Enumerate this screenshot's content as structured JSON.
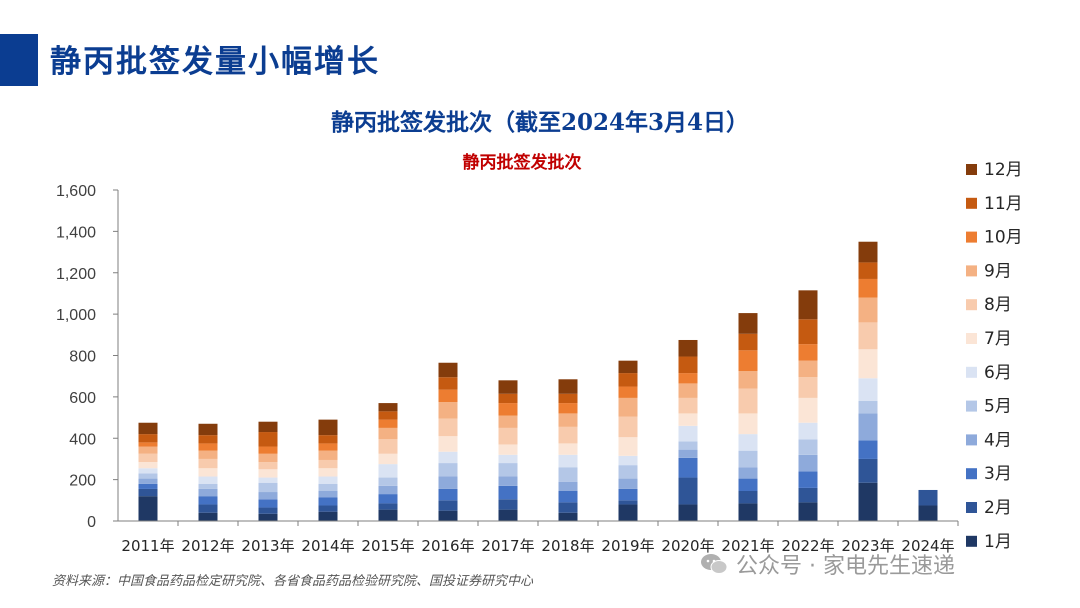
{
  "page": {
    "title": "静丙批签发量小幅增长",
    "chart_heading": "静丙批签发批次（截至2024年3月4日）",
    "source": "资料来源：中国食品药品检定研究院、各省食品药品检验研究院、国投证券研究中心",
    "watermark": "公众号 · 家电先生速递"
  },
  "chart_data": {
    "type": "bar",
    "stacked": true,
    "title": "静丙批签发批次",
    "title_color": "#c00000",
    "xlabel": "",
    "ylabel": "",
    "ylim": [
      0,
      1600
    ],
    "yticks": [
      0,
      200,
      400,
      600,
      800,
      1000,
      1200,
      1400,
      1600
    ],
    "ytick_labels": [
      "0",
      "200",
      "400",
      "600",
      "800",
      "1,000",
      "1,200",
      "1,400",
      "1,600"
    ],
    "grid": false,
    "legend_position": "right",
    "categories": [
      "2011年",
      "2012年",
      "2013年",
      "2014年",
      "2015年",
      "2016年",
      "2017年",
      "2018年",
      "2019年",
      "2020年",
      "2021年",
      "2022年",
      "2023年",
      "2024年"
    ],
    "series": [
      {
        "name": "1月",
        "color": "#1f3864",
        "values": [
          120,
          40,
          35,
          45,
          55,
          50,
          55,
          40,
          80,
          80,
          85,
          90,
          185,
          75
        ]
      },
      {
        "name": "2月",
        "color": "#2f5597",
        "values": [
          35,
          40,
          30,
          30,
          30,
          50,
          50,
          50,
          20,
          130,
          60,
          70,
          115,
          75
        ]
      },
      {
        "name": "3月",
        "color": "#4472c4",
        "values": [
          25,
          40,
          40,
          40,
          45,
          55,
          65,
          55,
          55,
          95,
          60,
          80,
          90,
          0
        ]
      },
      {
        "name": "4月",
        "color": "#8eaadb",
        "values": [
          25,
          35,
          35,
          30,
          40,
          60,
          45,
          45,
          50,
          40,
          55,
          80,
          130,
          0
        ]
      },
      {
        "name": "5月",
        "color": "#b4c7e7",
        "values": [
          25,
          25,
          45,
          35,
          40,
          65,
          65,
          70,
          65,
          40,
          80,
          75,
          60,
          0
        ]
      },
      {
        "name": "6月",
        "color": "#dae3f3",
        "values": [
          25,
          35,
          25,
          35,
          65,
          55,
          40,
          60,
          45,
          75,
          80,
          80,
          110,
          0
        ]
      },
      {
        "name": "7月",
        "color": "#fbe5d6",
        "values": [
          30,
          40,
          40,
          40,
          50,
          75,
          50,
          55,
          90,
          60,
          100,
          120,
          140,
          0
        ]
      },
      {
        "name": "8月",
        "color": "#f8cbad",
        "values": [
          40,
          45,
          35,
          40,
          70,
          85,
          80,
          80,
          100,
          75,
          120,
          100,
          130,
          0
        ]
      },
      {
        "name": "9月",
        "color": "#f4b183",
        "values": [
          35,
          40,
          40,
          45,
          55,
          80,
          60,
          65,
          90,
          70,
          85,
          80,
          120,
          0
        ]
      },
      {
        "name": "10月",
        "color": "#ed7d31",
        "values": [
          20,
          35,
          35,
          35,
          40,
          60,
          60,
          50,
          55,
          50,
          100,
          80,
          90,
          0
        ]
      },
      {
        "name": "11月",
        "color": "#c55a11",
        "values": [
          40,
          40,
          70,
          40,
          40,
          60,
          45,
          45,
          65,
          80,
          80,
          120,
          80,
          0
        ]
      },
      {
        "name": "12月",
        "color": "#843c0c",
        "values": [
          55,
          55,
          50,
          75,
          40,
          70,
          65,
          70,
          60,
          80,
          100,
          140,
          100,
          0
        ]
      }
    ]
  }
}
